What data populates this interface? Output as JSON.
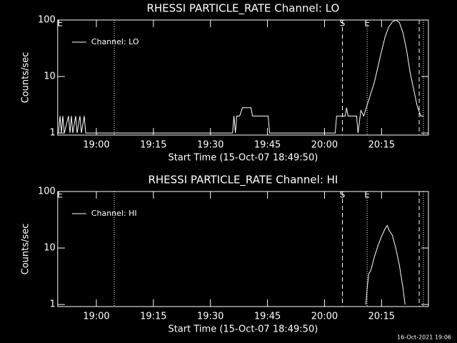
{
  "footer": "16-Oct-2021 19:06",
  "chart_data": [
    {
      "type": "line",
      "title": "RHESSI PARTICLE_RATE Channel: LO",
      "xlabel": "Start Time (15-Oct-07 18:49:50)",
      "ylabel": "Counts/sec",
      "log_y": true,
      "ylim": [
        0.92,
        100
      ],
      "yticks": [
        1,
        10,
        100
      ],
      "xlim": [
        1129.83,
        1227.33
      ],
      "xticks": [
        {
          "value": 1140,
          "label": "19:00"
        },
        {
          "value": 1155,
          "label": "19:15"
        },
        {
          "value": 1170,
          "label": "19:30"
        },
        {
          "value": 1185,
          "label": "19:45"
        },
        {
          "value": 1200,
          "label": "20:00"
        },
        {
          "value": 1215,
          "label": "20:15"
        }
      ],
      "legend": "upper left",
      "series": [
        {
          "name": "Channel: LO",
          "color": "#ffffff",
          "x": [
            1130.06,
            1130.43,
            1130.81,
            1131.18,
            1131.56,
            1132.68,
            1133.06,
            1133.43,
            1133.81,
            1134.56,
            1134.93,
            1135.68,
            1136.06,
            1136.81,
            1137.18,
            1175.81,
            1176.18,
            1176.56,
            1176.93,
            1177.68,
            1178.43,
            1180.68,
            1181.06,
            1185.18,
            1185.56,
            1202.81,
            1203.18,
            1205.43,
            1205.81,
            1206.18,
            1208.43,
            1208.81,
            1209.56,
            1210.31,
            1211.43,
            1212.18,
            1213.12,
            1214.06,
            1214.99,
            1215.93,
            1216.87,
            1217.81,
            1218.74,
            1219.68,
            1220.62,
            1221.56,
            1222.49,
            1223.43,
            1224.37,
            1225.31,
            1226.06
          ],
          "values": [
            1,
            2,
            1,
            2,
            1,
            2,
            1,
            2,
            1,
            2,
            1,
            2,
            1,
            2,
            1,
            1,
            2,
            1,
            2,
            2,
            2.8,
            2.8,
            2,
            2,
            1,
            1,
            2,
            2,
            2.8,
            2,
            2,
            1,
            2.5,
            2,
            3.5,
            5,
            8,
            15,
            28,
            50,
            75,
            92,
            100,
            90,
            60,
            30,
            12,
            6,
            3,
            2,
            2
          ]
        }
      ],
      "vlines": [
        {
          "x": 1144.7,
          "style": "dotted"
        },
        {
          "x": 1204.7,
          "style": "dashed"
        },
        {
          "x": 1211.2,
          "style": "dotted"
        },
        {
          "x": 1224.9,
          "style": "dashed"
        },
        {
          "x": 1226.0,
          "style": "dotted"
        }
      ],
      "annotations": [
        {
          "text": "E",
          "x": 1130.43
        },
        {
          "text": "S",
          "x": 1204.7
        },
        {
          "text": "E",
          "x": 1211.2
        }
      ]
    },
    {
      "type": "line",
      "title": "RHESSI PARTICLE_RATE Channel: HI",
      "xlabel": "Start Time (15-Oct-07 18:49:50)",
      "ylabel": "Counts/sec",
      "log_y": true,
      "ylim": [
        0.92,
        100
      ],
      "yticks": [
        1,
        10,
        100
      ],
      "xlim": [
        1129.83,
        1227.33
      ],
      "xticks": [
        {
          "value": 1140,
          "label": "19:00"
        },
        {
          "value": 1155,
          "label": "19:15"
        },
        {
          "value": 1170,
          "label": "19:30"
        },
        {
          "value": 1185,
          "label": "19:45"
        },
        {
          "value": 1200,
          "label": "20:00"
        },
        {
          "value": 1215,
          "label": "20:15"
        }
      ],
      "legend": "upper left",
      "series": [
        {
          "name": "Channel: HI",
          "color": "#ffffff",
          "x": [
            1210.87,
            1211.24,
            1211.62,
            1212.18,
            1213.12,
            1214.06,
            1214.99,
            1215.93,
            1216.49,
            1217.06,
            1217.81,
            1218.74,
            1219.68,
            1220.62,
            1221.18
          ],
          "values": [
            1,
            2,
            3.5,
            4,
            7,
            11,
            16,
            22,
            25,
            20,
            17,
            10,
            5,
            2,
            1
          ]
        }
      ],
      "vlines": [
        {
          "x": 1144.7,
          "style": "dotted"
        },
        {
          "x": 1204.7,
          "style": "dashed"
        },
        {
          "x": 1211.2,
          "style": "dotted"
        },
        {
          "x": 1224.9,
          "style": "dashed"
        },
        {
          "x": 1226.0,
          "style": "dotted"
        }
      ],
      "annotations": [
        {
          "text": "E",
          "x": 1130.43
        },
        {
          "text": "S",
          "x": 1204.7
        },
        {
          "text": "E",
          "x": 1211.2
        }
      ]
    }
  ]
}
